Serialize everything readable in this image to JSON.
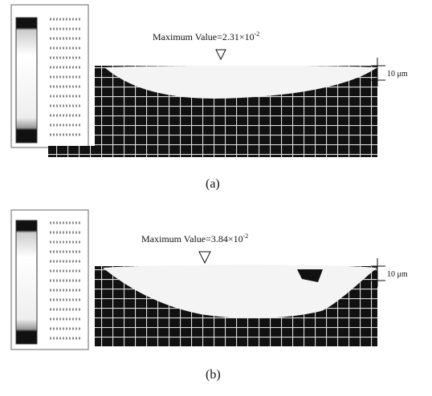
{
  "panels": [
    {
      "annotation": "Maximum Value=2.31×10",
      "exponent": "-2",
      "scale": "10 μm",
      "caption": "(a)"
    },
    {
      "annotation": "Maximum Value=3.84×10",
      "exponent": "-2",
      "scale": "10 μm",
      "caption": "(b)"
    }
  ]
}
